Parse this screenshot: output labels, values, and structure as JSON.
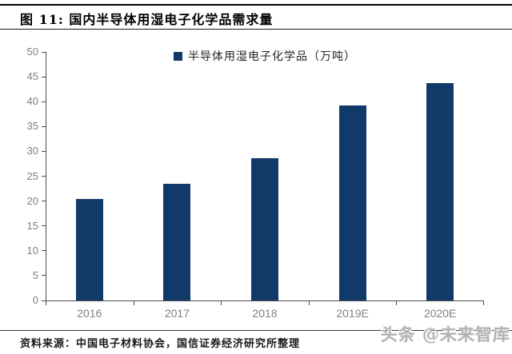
{
  "header": {
    "title": "图 11:  国内半导体用湿电子化学品需求量"
  },
  "chart_data": {
    "type": "bar",
    "title": "国内半导体用湿电子化学品需求量",
    "legend": "半导体用湿电子化学品（万吨）",
    "legend_position": "top-center",
    "categories": [
      "2016",
      "2017",
      "2018",
      "2019E",
      "2020E"
    ],
    "values": [
      20.4,
      23.5,
      28.6,
      39.2,
      43.8
    ],
    "xlabel": "",
    "ylabel": "",
    "ylim": [
      0,
      50
    ],
    "ytick_step": 5,
    "grid": false,
    "bar_color": "#123A68",
    "axis_color": "#4d4d4d",
    "tick_label_color": "#808080"
  },
  "footer": {
    "source": "资料来源：中国电子材料协会，国信证券经济研究所整理",
    "watermark": "头条 @未来智库"
  }
}
